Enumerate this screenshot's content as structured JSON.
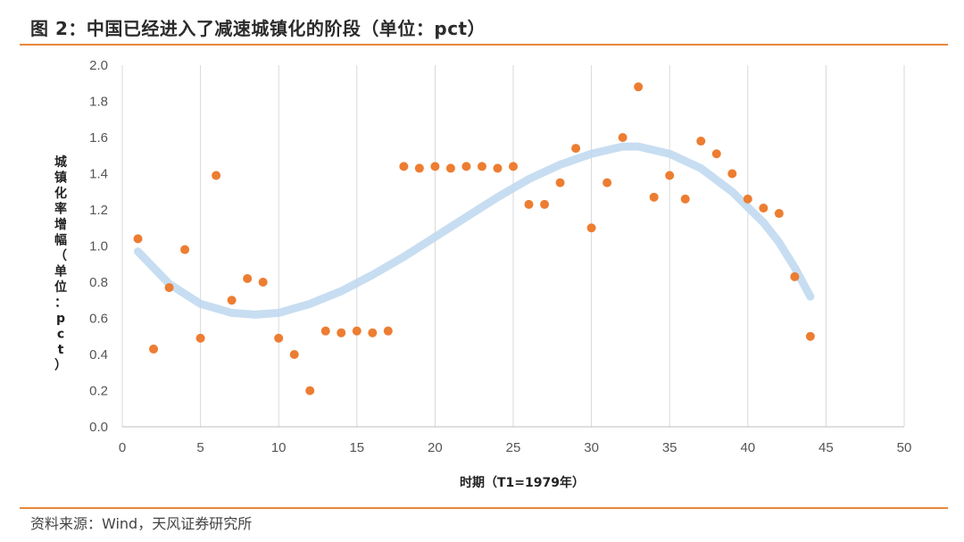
{
  "header": {
    "title": "图 2：中国已经进入了减速城镇化的阶段（单位：pct）"
  },
  "footer": {
    "source": "资料来源：Wind，天风证券研究所"
  },
  "colors": {
    "points": "#ed7d31",
    "trend": "#bdd7ee",
    "rule": "#e8883a",
    "grid": "#d9d9d9"
  },
  "chart_data": {
    "type": "scatter",
    "title": "图 2：中国已经进入了减速城镇化的阶段（单位：pct）",
    "xlabel": "时期（T1=1979年）",
    "ylabel": "城镇化率增幅（单位：pct）",
    "xlim": [
      0,
      50
    ],
    "ylim": [
      0,
      2.0
    ],
    "xticks": [
      0,
      5,
      10,
      15,
      20,
      25,
      30,
      35,
      40,
      45,
      50
    ],
    "yticks": [
      "0.0",
      "0.2",
      "0.4",
      "0.6",
      "0.8",
      "1.0",
      "1.2",
      "1.4",
      "1.6",
      "1.8",
      "2.0"
    ],
    "grid": "vertical",
    "series": [
      {
        "type": "scatter",
        "points": [
          [
            1,
            1.04
          ],
          [
            2,
            0.43
          ],
          [
            3,
            0.77
          ],
          [
            4,
            0.98
          ],
          [
            5,
            0.49
          ],
          [
            6,
            1.39
          ],
          [
            7,
            0.7
          ],
          [
            8,
            0.82
          ],
          [
            9,
            0.8
          ],
          [
            10,
            0.49
          ],
          [
            11,
            0.4
          ],
          [
            12,
            0.2
          ],
          [
            13,
            0.53
          ],
          [
            14,
            0.52
          ],
          [
            15,
            0.53
          ],
          [
            16,
            0.52
          ],
          [
            17,
            0.53
          ],
          [
            18,
            1.44
          ],
          [
            19,
            1.43
          ],
          [
            20,
            1.44
          ],
          [
            21,
            1.43
          ],
          [
            22,
            1.44
          ],
          [
            23,
            1.44
          ],
          [
            24,
            1.43
          ],
          [
            25,
            1.44
          ],
          [
            26,
            1.23
          ],
          [
            27,
            1.23
          ],
          [
            28,
            1.35
          ],
          [
            29,
            1.54
          ],
          [
            30,
            1.1
          ],
          [
            31,
            1.35
          ],
          [
            32,
            1.6
          ],
          [
            33,
            1.88
          ],
          [
            34,
            1.27
          ],
          [
            35,
            1.39
          ],
          [
            36,
            1.26
          ],
          [
            37,
            1.58
          ],
          [
            38,
            1.51
          ],
          [
            39,
            1.4
          ],
          [
            40,
            1.26
          ],
          [
            41,
            1.21
          ],
          [
            42,
            1.18
          ],
          [
            43,
            0.83
          ],
          [
            44,
            0.5
          ]
        ]
      },
      {
        "type": "line",
        "trend": "polynomial",
        "points": [
          [
            1,
            0.97
          ],
          [
            3,
            0.79
          ],
          [
            5,
            0.68
          ],
          [
            7,
            0.63
          ],
          [
            8.5,
            0.62
          ],
          [
            10,
            0.63
          ],
          [
            12,
            0.68
          ],
          [
            14,
            0.75
          ],
          [
            16,
            0.84
          ],
          [
            18,
            0.94
          ],
          [
            20,
            1.05
          ],
          [
            22,
            1.16
          ],
          [
            24,
            1.27
          ],
          [
            26,
            1.37
          ],
          [
            28,
            1.45
          ],
          [
            30,
            1.51
          ],
          [
            32,
            1.55
          ],
          [
            33,
            1.55
          ],
          [
            35,
            1.51
          ],
          [
            37,
            1.43
          ],
          [
            39,
            1.3
          ],
          [
            41,
            1.13
          ],
          [
            42,
            1.02
          ],
          [
            43,
            0.88
          ],
          [
            44,
            0.72
          ]
        ]
      }
    ]
  }
}
